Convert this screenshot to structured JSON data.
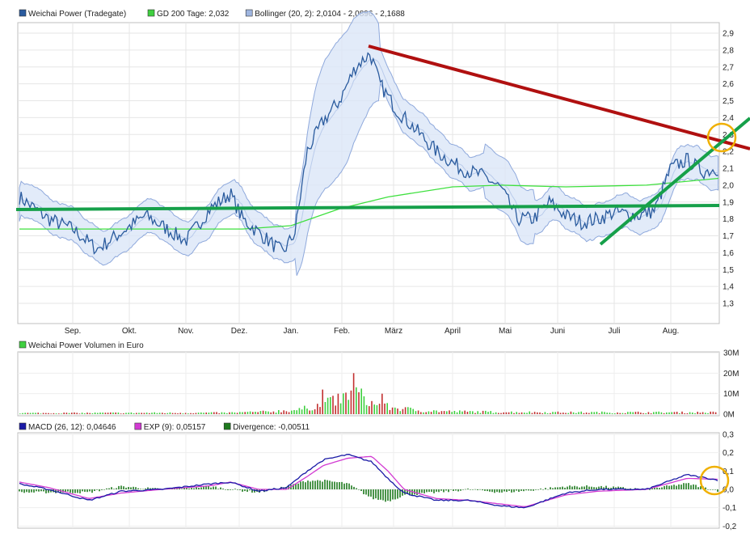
{
  "chart_data": [
    {
      "type": "line",
      "panel": "price",
      "legend": [
        {
          "label": "Weichai Power (Tradegate)",
          "color": "#2a5b9e"
        },
        {
          "label": "GD 200 Tage: 2,032",
          "color": "#3fcf3f"
        },
        {
          "label": "Bollinger (20, 2): 2,0104 - 2,0896 - 2,1688",
          "color": "#9fb6e0"
        }
      ],
      "x_ticks": [
        "Sep.",
        "Okt.",
        "Nov.",
        "Dez.",
        "Jan.",
        "Feb.",
        "März",
        "April",
        "Mai",
        "Juni",
        "Juli",
        "Aug."
      ],
      "y_ticks": [
        "2,9",
        "2,8",
        "2,7",
        "2,6",
        "2,5",
        "2,4",
        "2,3",
        "2,2",
        "2,1",
        "2,0",
        "1,9",
        "1,8",
        "1,7",
        "1,6",
        "1,5",
        "1,4",
        "1,3"
      ],
      "ylim": [
        1.2,
        2.95
      ],
      "x": [
        "Aug.",
        "Sep.",
        "Okt.",
        "Nov.",
        "Dez.",
        "Jan.",
        "Feb.",
        "März",
        "April",
        "Mai",
        "Juni",
        "Juli",
        "Aug."
      ],
      "series": [
        {
          "name": "Weichai Power (Tradegate)",
          "color": "#2a5b9e",
          "values": [
            1.9,
            1.82,
            1.62,
            1.78,
            1.93,
            1.63,
            2.35,
            2.62,
            2.08,
            1.82,
            1.78,
            1.8,
            2.1
          ]
        },
        {
          "name": "GD 200 Tage: 2,032",
          "color": "#3fcf3f",
          "values": [
            1.74,
            1.735,
            1.74,
            1.74,
            1.75,
            1.76,
            1.87,
            1.96,
            2.0,
            1.99,
            1.985,
            1.99,
            2.03
          ]
        },
        {
          "name": "Bollinger upper",
          "color": "#9fb6e0",
          "values": [
            2.02,
            1.9,
            1.84,
            1.88,
            1.98,
            1.74,
            2.58,
            2.72,
            2.22,
            2.0,
            1.9,
            1.88,
            2.23
          ]
        },
        {
          "name": "Bollinger lower",
          "color": "#9fb6e0",
          "values": [
            1.78,
            1.73,
            1.6,
            1.67,
            1.76,
            1.52,
            1.74,
            2.38,
            1.95,
            1.7,
            1.72,
            1.7,
            2.0
          ]
        }
      ],
      "annotations": [
        {
          "type": "trendline",
          "color": "#b01010",
          "from": [
            0.467,
            2.78
          ],
          "to": [
            1.0,
            2.08
          ]
        },
        {
          "type": "trendline",
          "color": "#16a04a",
          "from": [
            0.0,
            1.72
          ],
          "to": [
            1.0,
            1.74
          ]
        },
        {
          "type": "trendline",
          "color": "#16a04a",
          "from": [
            0.775,
            1.55
          ],
          "to": [
            1.0,
            2.17
          ]
        },
        {
          "type": "circle",
          "color": "#f0b000",
          "at": [
            0.968,
            2.12
          ]
        }
      ]
    },
    {
      "type": "bar",
      "panel": "volume",
      "legend": [
        {
          "label": "Weichai Power Volumen in Euro",
          "color": "#3fcf3f"
        }
      ],
      "y_ticks": [
        "30M",
        "20M",
        "10M",
        "0M"
      ],
      "ylim": [
        0,
        30
      ],
      "x_ticks": [
        "Sep.",
        "Okt.",
        "Nov.",
        "Dez.",
        "Jan.",
        "Feb.",
        "März",
        "April",
        "Mai",
        "Juni",
        "Juli",
        "Aug."
      ],
      "values_profile": [
        {
          "x": 0.0,
          "v": 0.5
        },
        {
          "x": 0.3,
          "v": 1.0
        },
        {
          "x": 0.38,
          "v": 3.0
        },
        {
          "x": 0.42,
          "v": 8.0
        },
        {
          "x": 0.47,
          "v": 20.0
        },
        {
          "x": 0.5,
          "v": 6.0
        },
        {
          "x": 0.56,
          "v": 2.0
        },
        {
          "x": 0.75,
          "v": 1.0
        },
        {
          "x": 1.0,
          "v": 1.0
        }
      ],
      "colors": {
        "up": "#3fcf3f",
        "down": "#c23030"
      }
    },
    {
      "type": "line",
      "panel": "macd",
      "legend": [
        {
          "label": "MACD (26, 12): 0,04646",
          "color": "#1a1aa6"
        },
        {
          "label": "EXP (9): 0,05157",
          "color": "#d23ad2"
        },
        {
          "label": "Divergence: -0,00511",
          "color": "#1e7a1e"
        }
      ],
      "y_ticks": [
        "0,3",
        "0,2",
        "0,1",
        "0,0",
        "-0,1",
        "-0,2"
      ],
      "ylim": [
        -0.2,
        0.3
      ],
      "x": [
        "Aug.",
        "Sep.",
        "Okt.",
        "Nov.",
        "Dez.",
        "Jan.",
        "Feb.",
        "März",
        "April",
        "Mai",
        "Juni",
        "Juli",
        "Aug."
      ],
      "series": [
        {
          "name": "MACD (26, 12): 0,04646",
          "color": "#1a1aa6",
          "values": [
            0.03,
            -0.03,
            -0.02,
            0.02,
            0.04,
            -0.02,
            0.17,
            0.15,
            -0.06,
            -0.1,
            0.0,
            0.0,
            0.05
          ]
        },
        {
          "name": "EXP (9): 0,05157",
          "color": "#d23ad2",
          "values": [
            0.04,
            -0.02,
            -0.03,
            0.01,
            0.04,
            -0.01,
            0.14,
            0.16,
            -0.04,
            -0.09,
            -0.01,
            0.0,
            0.05
          ]
        },
        {
          "name": "Divergence: -0,00511",
          "color": "#1e7a1e",
          "values": [
            -0.01,
            -0.01,
            0.01,
            0.01,
            0.0,
            -0.01,
            0.03,
            -0.01,
            -0.02,
            -0.01,
            0.01,
            0.0,
            -0.005
          ]
        }
      ],
      "annotations": [
        {
          "type": "circle",
          "color": "#f0b000",
          "at": [
            0.968,
            0.06
          ]
        }
      ]
    }
  ]
}
